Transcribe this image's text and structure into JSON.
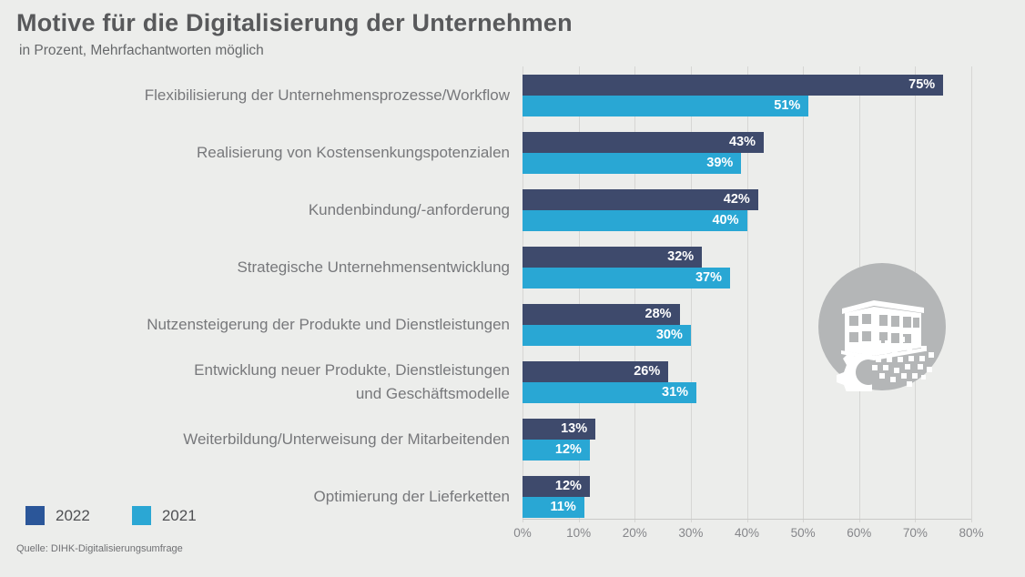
{
  "header": {
    "title": "Motive für die Digitalisierung der Unternehmen",
    "subtitle": "in Prozent, Mehrfachantworten möglich"
  },
  "footer": {
    "source": "Quelle: DIHK-Digitalisierungsumfrage"
  },
  "legend": {
    "items": [
      {
        "label": "2022",
        "color": "#2b5699"
      },
      {
        "label": "2021",
        "color": "#2ba7d4"
      }
    ]
  },
  "colors": {
    "background": "#ecedeb",
    "bar_2022": "#3e4a6c",
    "bar_2021": "#29a7d4",
    "gridline": "#d6d6d4",
    "title_text": "#58595b",
    "category_text": "#77787b",
    "axis_text": "#85868a",
    "value_text": "#ffffff",
    "icon_gray": "#b4b6b7"
  },
  "chart_data": {
    "type": "bar",
    "orientation": "horizontal",
    "title": "Motive für die Digitalisierung der Unternehmen",
    "subtitle": "in Prozent, Mehrfachantworten möglich",
    "categories": [
      "Flexibilisierung der Unternehmensprozesse/Workflow",
      "Realisierung von Kostensenkungspotenzialen",
      "Kundenbindung/-anforderung",
      "Strategische Unternehmensentwicklung",
      "Nutzensteigerung der Produkte und Dienstleistungen",
      "Entwicklung neuer Produkte, Dienstleistungen\nund Geschäftsmodelle",
      "Weiterbildung/Unterweisung der Mitarbeitenden",
      "Optimierung der Lieferketten"
    ],
    "series": [
      {
        "name": "2022",
        "color": "#3e4a6c",
        "values": [
          75,
          43,
          42,
          32,
          28,
          26,
          13,
          12
        ]
      },
      {
        "name": "2021",
        "color": "#29a7d4",
        "values": [
          51,
          39,
          40,
          37,
          30,
          31,
          12,
          11
        ]
      }
    ],
    "value_suffix": "%",
    "xlabel": "",
    "ylabel": "",
    "xlim": [
      0,
      80
    ],
    "x_ticks": [
      "0%",
      "10%",
      "20%",
      "30%",
      "40%",
      "50%",
      "60%",
      "70%",
      "80%"
    ],
    "grid": "vertical",
    "legend_position": "bottom-left",
    "decoration": "building-digital-gear-icon"
  }
}
